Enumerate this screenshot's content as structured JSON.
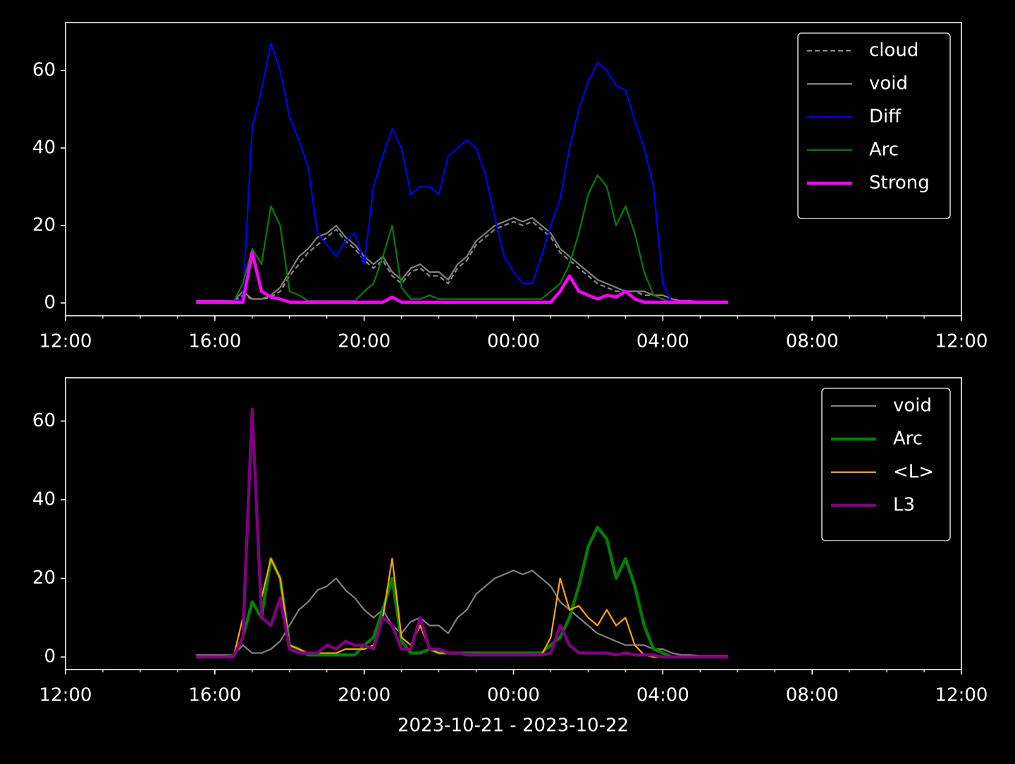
{
  "chart_data": [
    {
      "type": "line",
      "x": [
        15.5,
        15.75,
        16,
        16.25,
        16.5,
        16.75,
        17,
        17.25,
        17.5,
        17.75,
        18,
        18.25,
        18.5,
        18.75,
        19,
        19.25,
        19.5,
        19.75,
        20,
        20.25,
        20.5,
        20.75,
        21,
        21.25,
        21.5,
        21.75,
        22,
        22.25,
        22.5,
        22.75,
        23,
        23.25,
        23.5,
        23.75,
        24,
        24.25,
        24.5,
        24.75,
        25,
        25.25,
        25.5,
        25.75,
        26,
        26.25,
        26.5,
        26.75,
        27,
        27.25,
        27.5,
        27.75,
        28,
        28.25,
        28.5,
        28.75,
        29,
        29.25,
        29.5,
        29.75
      ],
      "xlim": [
        12,
        36
      ],
      "xticks": [
        {
          "value": 12,
          "label": "12:00"
        },
        {
          "value": 16,
          "label": "16:00"
        },
        {
          "value": 20,
          "label": "20:00"
        },
        {
          "value": 24,
          "label": "00:00"
        },
        {
          "value": 28,
          "label": "04:00"
        },
        {
          "value": 32,
          "label": "08:00"
        },
        {
          "value": 36,
          "label": "12:00"
        }
      ],
      "xminorticks": [
        13,
        14,
        15,
        17,
        18,
        19,
        21,
        22,
        23,
        25,
        26,
        27,
        29,
        30,
        31,
        33,
        34,
        35
      ],
      "ylim": [
        -3.3,
        72.4
      ],
      "yticks": [
        0,
        20,
        40,
        60
      ],
      "legend": "upper right",
      "series": [
        {
          "name": "cloud",
          "color": "#888888",
          "linestyle": "dashed",
          "linewidth": 1,
          "values": [
            0.3,
            0.3,
            0.3,
            0.3,
            0.3,
            2,
            1,
            1,
            1.5,
            3,
            7,
            10,
            13,
            15,
            17,
            19,
            16,
            14,
            11,
            9,
            11,
            7,
            5,
            8,
            9,
            7,
            7,
            5,
            9,
            11,
            15,
            17,
            19,
            20,
            21,
            20,
            21,
            19,
            17,
            13,
            11,
            9,
            7,
            5,
            4,
            3,
            3,
            3,
            2,
            2,
            2,
            1,
            0.5,
            0.3,
            0.3,
            0.3,
            0.3,
            0.3
          ]
        },
        {
          "name": "void",
          "color": "#808080",
          "linestyle": "solid",
          "linewidth": 1,
          "values": [
            0.5,
            0.5,
            0.5,
            0.5,
            0.5,
            3,
            1,
            1,
            2,
            4,
            8,
            12,
            14,
            17,
            18,
            20,
            17,
            15,
            12,
            10,
            12,
            8,
            6,
            9,
            10,
            8,
            8,
            6,
            10,
            12,
            16,
            18,
            20,
            21,
            22,
            21,
            22,
            20,
            18,
            14,
            12,
            10,
            8,
            6,
            5,
            4,
            3,
            3,
            3,
            2,
            2,
            1,
            0.5,
            0.5,
            0.3,
            0.3,
            0.3,
            0.3
          ]
        },
        {
          "name": "Diff",
          "color": "#0000ff",
          "linestyle": "solid",
          "linewidth": 1,
          "values": [
            0,
            0,
            0,
            0,
            0.5,
            1,
            45,
            55,
            67,
            60,
            48,
            42,
            35,
            18,
            15,
            12,
            16,
            18,
            10,
            30,
            38,
            45,
            40,
            28,
            30,
            30,
            28,
            38,
            40,
            42,
            40,
            33,
            22,
            12,
            8,
            5,
            5,
            12,
            20,
            27,
            40,
            50,
            57,
            62,
            60,
            56,
            55,
            47,
            40,
            30,
            5,
            0,
            0,
            0,
            0,
            0,
            0,
            0
          ]
        },
        {
          "name": "Arc",
          "color": "#008000",
          "linestyle": "solid",
          "linewidth": 1,
          "values": [
            0,
            0,
            0,
            0,
            0.3,
            5,
            14,
            10,
            25,
            20,
            3,
            2,
            0.5,
            0.5,
            0.5,
            0.5,
            0.5,
            0.5,
            3,
            5,
            12,
            20,
            4,
            1,
            1,
            2,
            1,
            1,
            1,
            1,
            1,
            1,
            1,
            1,
            1,
            1,
            1,
            1,
            3,
            5,
            10,
            18,
            28,
            33,
            30,
            20,
            25,
            18,
            8,
            2,
            1,
            0,
            0,
            0,
            0,
            0,
            0,
            0
          ]
        },
        {
          "name": "Strong",
          "color": "#ff00ff",
          "linestyle": "solid",
          "linewidth": 2,
          "values": [
            0.2,
            0.2,
            0.2,
            0.2,
            0.2,
            0.2,
            13,
            3,
            1.5,
            1,
            0.2,
            0.2,
            0.2,
            0.2,
            0.2,
            0.2,
            0.2,
            0.2,
            0.2,
            0.2,
            0.2,
            1.5,
            0.2,
            0.2,
            0.2,
            0.2,
            0.2,
            0.2,
            0.2,
            0.2,
            0.2,
            0.2,
            0.2,
            0.2,
            0.2,
            0.2,
            0.2,
            0.2,
            0.2,
            3,
            7,
            3,
            2,
            1,
            2,
            1.5,
            3,
            1,
            0.2,
            0.2,
            0.2,
            0.2,
            0.2,
            0.2,
            0.2,
            0.2,
            0.2,
            0.2
          ]
        }
      ]
    },
    {
      "type": "line",
      "x": [
        15.5,
        15.75,
        16,
        16.25,
        16.5,
        16.75,
        17,
        17.25,
        17.5,
        17.75,
        18,
        18.25,
        18.5,
        18.75,
        19,
        19.25,
        19.5,
        19.75,
        20,
        20.25,
        20.5,
        20.75,
        21,
        21.25,
        21.5,
        21.75,
        22,
        22.25,
        22.5,
        22.75,
        23,
        23.25,
        23.5,
        23.75,
        24,
        24.25,
        24.5,
        24.75,
        25,
        25.25,
        25.5,
        25.75,
        26,
        26.25,
        26.5,
        26.75,
        27,
        27.25,
        27.5,
        27.75,
        28,
        28.25,
        28.5,
        28.75,
        29,
        29.25,
        29.5,
        29.75
      ],
      "xlim": [
        12,
        36
      ],
      "xticks": [
        {
          "value": 12,
          "label": "12:00"
        },
        {
          "value": 16,
          "label": "16:00"
        },
        {
          "value": 20,
          "label": "20:00"
        },
        {
          "value": 24,
          "label": "00:00"
        },
        {
          "value": 28,
          "label": "04:00"
        },
        {
          "value": 32,
          "label": "08:00"
        },
        {
          "value": 36,
          "label": "12:00"
        }
      ],
      "xminorticks": [
        13,
        14,
        15,
        17,
        18,
        19,
        21,
        22,
        23,
        25,
        26,
        27,
        29,
        30,
        31,
        33,
        34,
        35
      ],
      "xlabel": "2023-10-21 - 2023-10-22",
      "ylim": [
        -3.2,
        71
      ],
      "yticks": [
        0,
        20,
        40,
        60
      ],
      "legend": "upper right",
      "series": [
        {
          "name": "void",
          "color": "#808080",
          "linestyle": "solid",
          "linewidth": 1,
          "values": [
            0.5,
            0.5,
            0.5,
            0.5,
            0.5,
            3,
            1,
            1,
            2,
            4,
            8,
            12,
            14,
            17,
            18,
            20,
            17,
            15,
            12,
            10,
            12,
            8,
            6,
            9,
            10,
            8,
            8,
            6,
            10,
            12,
            16,
            18,
            20,
            21,
            22,
            21,
            22,
            20,
            18,
            14,
            12,
            10,
            8,
            6,
            5,
            4,
            3,
            3,
            3,
            2,
            2,
            1,
            0.5,
            0.5,
            0.3,
            0.3,
            0.3,
            0.3
          ]
        },
        {
          "name": "Arc",
          "color": "#008000",
          "linestyle": "solid",
          "linewidth": 2,
          "values": [
            0,
            0,
            0,
            0,
            0.3,
            5,
            14,
            10,
            25,
            20,
            3,
            2,
            0.5,
            0.5,
            0.5,
            0.5,
            0.5,
            0.5,
            3,
            5,
            12,
            20,
            4,
            1,
            1,
            2,
            1,
            1,
            1,
            1,
            1,
            1,
            1,
            1,
            1,
            1,
            1,
            1,
            3,
            5,
            10,
            18,
            28,
            33,
            30,
            20,
            25,
            18,
            8,
            2,
            1,
            0,
            0,
            0,
            0,
            0,
            0,
            0
          ]
        },
        {
          "name": "<L>",
          "color": "#ffa500",
          "linestyle": "solid",
          "linewidth": 1,
          "values": [
            0,
            0,
            0,
            0,
            0,
            10,
            60,
            15,
            25,
            20,
            3,
            2,
            1,
            1,
            1,
            1,
            2,
            2,
            2,
            3,
            10,
            25,
            5,
            3,
            8,
            2,
            1,
            1,
            1,
            0.5,
            0.5,
            0.5,
            0.5,
            0.5,
            0.5,
            0.5,
            0.5,
            0.5,
            5,
            20,
            12,
            13,
            10,
            8,
            12,
            8,
            10,
            3,
            0.5,
            0,
            0,
            0,
            0,
            0,
            0,
            0,
            0,
            0
          ]
        },
        {
          "name": "L3",
          "color": "#800080",
          "linestyle": "solid",
          "linewidth": 2,
          "values": [
            0,
            0,
            0,
            0,
            0,
            5,
            63,
            10,
            8,
            15,
            2,
            1,
            1,
            1,
            3,
            2,
            4,
            3,
            3,
            2,
            10,
            8,
            2,
            2,
            10,
            2,
            2,
            1,
            1,
            0.5,
            0.5,
            0.5,
            0.5,
            0.5,
            0.5,
            0.5,
            0.5,
            0.5,
            1,
            8,
            3,
            1,
            1,
            1,
            1,
            0.5,
            1,
            0.5,
            0.5,
            0.5,
            0,
            0,
            0,
            0,
            0,
            0,
            0,
            0
          ]
        }
      ]
    }
  ]
}
